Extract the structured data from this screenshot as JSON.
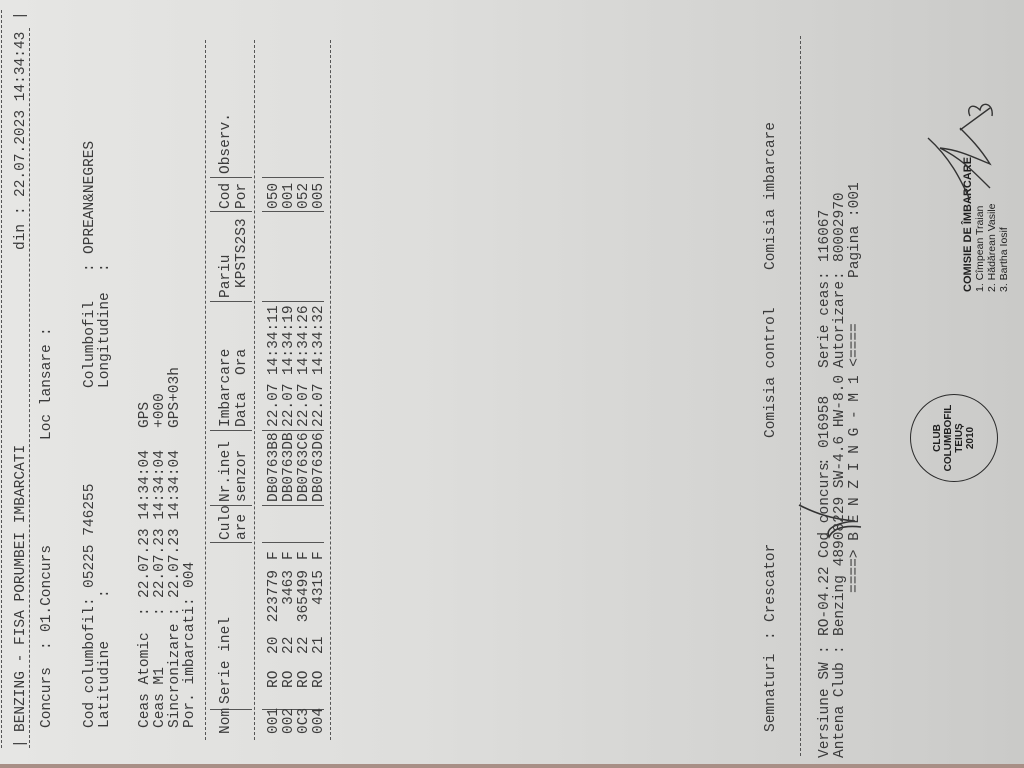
{
  "header": {
    "title": "BENZING - FISA PORUMBEI IMBARCATI",
    "date_label": "din",
    "date_value": "22.07.2023 14:34:43"
  },
  "info": {
    "concurs_label": "Concurs",
    "concurs_value": "01.Concurs",
    "loc_lansare_label": "Loc lansare",
    "loc_lansare_value": "",
    "cod_columbofil_label": "Cod columbofil",
    "cod_columbofil_value": "05225 746255",
    "columbofil_label": "Columbofil",
    "columbofil_value": "OPREAN&NEGRES",
    "latitudine_label": "Latitudine",
    "latitudine_value": "",
    "longitudine_label": "Longitudine",
    "longitudine_value": "",
    "clocks": [
      {
        "label": "Ceas Atomic",
        "value": "22.07.23 14:34:04",
        "note": "GPS"
      },
      {
        "label": "Ceas M1",
        "value": "22.07.23 14:34:04",
        "note": "+000"
      },
      {
        "label": "Sincronizare",
        "value": "22.07.23 14:34:04",
        "note": "GPS+03h"
      }
    ],
    "por_imbarcati_label": "Por. imbarcati",
    "por_imbarcati_value": "004"
  },
  "table": {
    "headers": {
      "nom": "Nom",
      "serie": "Serie inel",
      "culo1": "Culo",
      "culo2": "are",
      "nr1": "Nr.inel",
      "nr2": "senzor",
      "imb1": "Imbarcare",
      "imb_data": "Data",
      "imb_ora": "Ora",
      "pariu1": "Pariu",
      "pariu2": "KPSTS2S3",
      "cod1": "Cod",
      "cod2": "Por",
      "observ": "Observ."
    },
    "rows": [
      {
        "nom": "001",
        "tara": "RO",
        "an": "20",
        "nr": "223779",
        "sex": "F",
        "culoare": "",
        "senzor": "DB0763B8",
        "data": "22.07",
        "ora": "14:34:11",
        "pariu": "",
        "cod": "050",
        "observ": ""
      },
      {
        "nom": "002",
        "tara": "RO",
        "an": "22",
        "nr": "3463",
        "sex": "F",
        "culoare": "",
        "senzor": "DB0763DB",
        "data": "22.07",
        "ora": "14:34:19",
        "pariu": "",
        "cod": "001",
        "observ": ""
      },
      {
        "nom": "0C3",
        "tara": "RO",
        "an": "22",
        "nr": "365499",
        "sex": "F",
        "culoare": "",
        "senzor": "DB0763C6",
        "data": "22.07",
        "ora": "14:34:26",
        "pariu": "",
        "cod": "052",
        "observ": ""
      },
      {
        "nom": "004",
        "tara": "RO",
        "an": "21",
        "nr": "4315",
        "sex": "F",
        "culoare": "",
        "senzor": "DB0763D6",
        "data": "22.07",
        "ora": "14:34:32",
        "pariu": "",
        "cod": "005",
        "observ": ""
      }
    ]
  },
  "signatures": {
    "label": "Semnaturi",
    "crescator": "Crescator",
    "comisia_control": "Comisia control",
    "comisia_imbarcare": "Comisia imbarcare"
  },
  "footer": {
    "versiune_label": "Versiune SW",
    "versiune_value": "RO-04.22",
    "cod_concurs_label": "Cod concurs",
    "cod_concurs_value": "016958",
    "serie_ceas_label": "Serie ceas",
    "serie_ceas_value": "116067",
    "antena_label": "Antena Club",
    "antena_value": "Benzing 48908229 SW-4.6 HW-8.0",
    "autorizare_label": "Autorizare",
    "autorizare_value": "80002970",
    "banner": "====> B E N Z I N G - M 1 <====",
    "pagina": "Pagina :001"
  },
  "stamp": {
    "club_lines": [
      "CLUB",
      "COLUMBOFIL",
      "TEIUȘ",
      "2010"
    ],
    "commission_title": "COMISIE DE ÎMBARCARE",
    "members": [
      "1. Cîmpean Traian",
      "2. Hădărean Vasile",
      "3. Bartha Iosif"
    ]
  }
}
